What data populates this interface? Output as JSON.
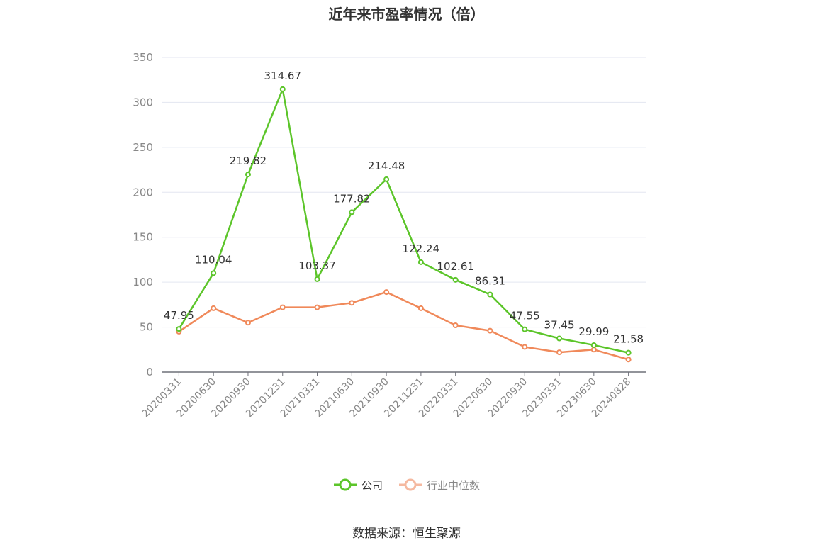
{
  "title": "近年来市盈率情况（倍）",
  "source": "数据来源：恒生聚源",
  "colors": {
    "company": "#5cc52a",
    "industry": "#f0895a",
    "industry_legend": "#f5b9a0",
    "grid": "#e3e6f0",
    "axis": "#6e7079",
    "text": "#333333"
  },
  "legend": [
    {
      "label": "公司",
      "series": "company"
    },
    {
      "label": "行业中位数",
      "series": "industry"
    }
  ],
  "chart_data": {
    "type": "line",
    "title": "近年来市盈率情况（倍）",
    "categories": [
      "20200331",
      "20200630",
      "20200930",
      "20201231",
      "20210331",
      "20210630",
      "20210930",
      "20211231",
      "20220331",
      "20220630",
      "20220930",
      "20230331",
      "20230630",
      "20240828"
    ],
    "ylim": [
      0,
      350
    ],
    "yticks": [
      0,
      50,
      100,
      150,
      200,
      250,
      300,
      350
    ],
    "grid": true,
    "legend_position": "bottom",
    "series": [
      {
        "name": "公司",
        "key": "company",
        "values": [
          47.95,
          110.04,
          219.82,
          314.67,
          103.37,
          177.82,
          214.48,
          122.24,
          102.61,
          86.31,
          47.55,
          37.45,
          29.99,
          21.58
        ],
        "show_labels": true
      },
      {
        "name": "行业中位数",
        "key": "industry",
        "values": [
          45,
          71,
          55,
          72,
          72,
          77,
          89,
          71,
          52,
          46,
          28,
          22,
          25,
          14
        ],
        "show_labels": false
      }
    ]
  }
}
